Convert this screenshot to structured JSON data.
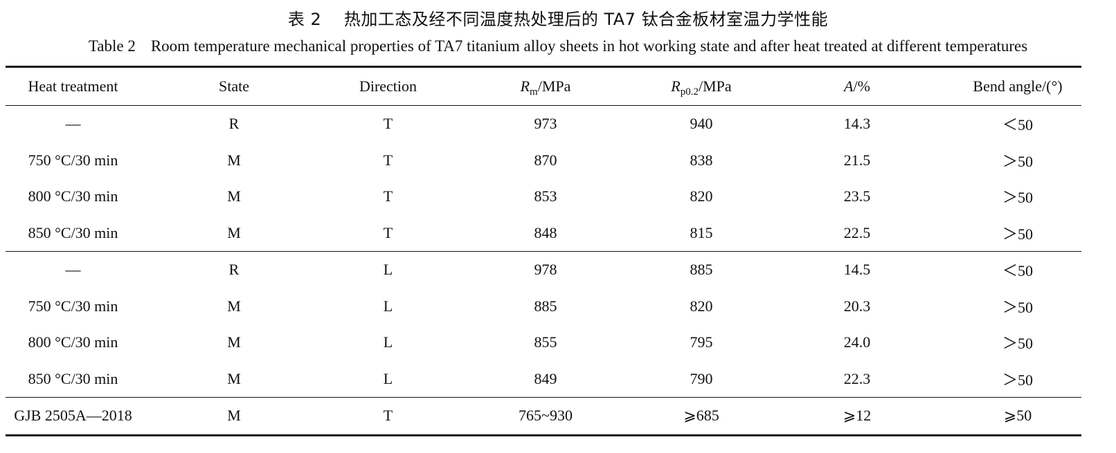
{
  "caption_cn": {
    "label": "表 2",
    "text": "热加工态及经不同温度热处理后的 TA7 钛合金板材室温力学性能"
  },
  "caption_en": {
    "label": "Table 2",
    "text": "Room temperature mechanical properties of TA7 titanium alloy sheets in hot working state and after heat treated at different temperatures"
  },
  "headers": {
    "heat_treatment": "Heat treatment",
    "state": "State",
    "direction": "Direction",
    "rm": {
      "symbol": "R",
      "sub": "m",
      "unit": "/MPa"
    },
    "rp": {
      "symbol": "R",
      "sub": "p0.2",
      "unit": "/MPa"
    },
    "a": {
      "symbol": "A",
      "unit": "/%"
    },
    "bend": "Bend angle/(°)"
  },
  "rows": [
    [
      "—",
      "R",
      "T",
      "973",
      "940",
      "14.3",
      "＜50"
    ],
    [
      "750 °C/30 min",
      "M",
      "T",
      "870",
      "838",
      "21.5",
      "＞50"
    ],
    [
      "800 °C/30 min",
      "M",
      "T",
      "853",
      "820",
      "23.5",
      "＞50"
    ],
    [
      "850 °C/30 min",
      "M",
      "T",
      "848",
      "815",
      "22.5",
      "＞50"
    ],
    [
      "—",
      "R",
      "L",
      "978",
      "885",
      "14.5",
      "＜50"
    ],
    [
      "750 °C/30 min",
      "M",
      "L",
      "885",
      "820",
      "20.3",
      "＞50"
    ],
    [
      "800 °C/30 min",
      "M",
      "L",
      "855",
      "795",
      "24.0",
      "＞50"
    ],
    [
      "850 °C/30 min",
      "M",
      "L",
      "849",
      "790",
      "22.3",
      "＞50"
    ],
    [
      "GJB 2505A—2018",
      "M",
      "T",
      "765~930",
      "⩾685",
      "⩾12",
      "⩾50"
    ]
  ]
}
